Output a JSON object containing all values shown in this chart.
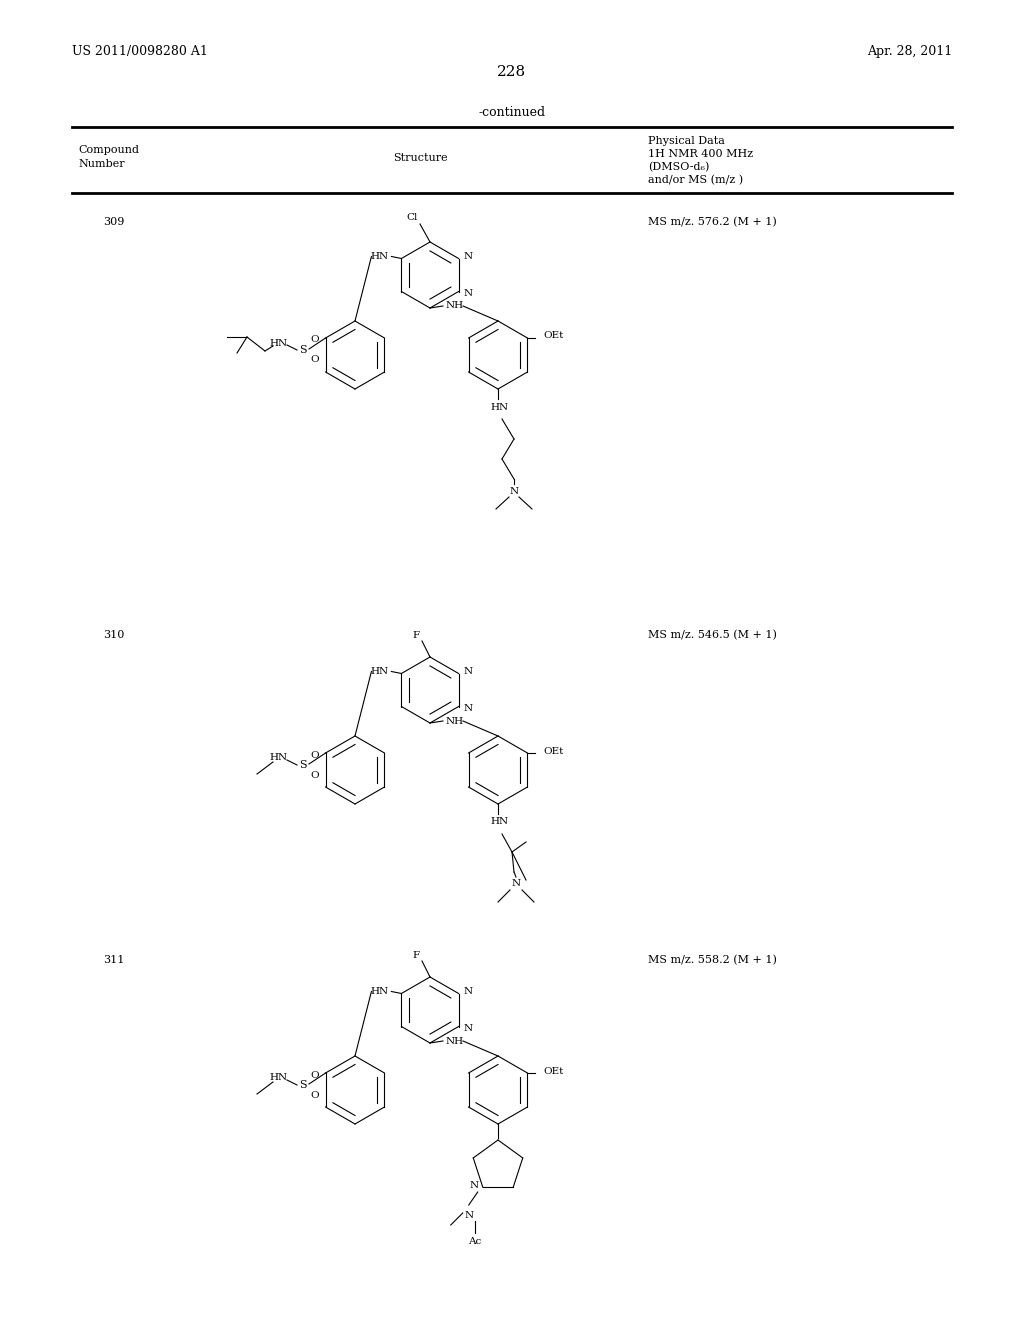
{
  "background_color": "#ffffff",
  "page_number": "228",
  "top_left_text": "US 2011/0098280 A1",
  "top_right_text": "Apr. 28, 2011",
  "continued_text": "-continued",
  "header_col1_line1": "Compound",
  "header_col1_line2": "Number",
  "header_col2": "Structure",
  "header_col3_lines": [
    "Physical Data",
    "1H NMR 400 MHz",
    "(DMSO-d₆)",
    "and/or MS (m/z )"
  ],
  "compounds": [
    {
      "number": "309",
      "ms_data": "MS m/z. 576.2 (M + 1)"
    },
    {
      "number": "310",
      "ms_data": "MS m/z. 546.5 (M + 1)"
    },
    {
      "number": "311",
      "ms_data": "MS m/z. 558.2 (M + 1)"
    }
  ]
}
